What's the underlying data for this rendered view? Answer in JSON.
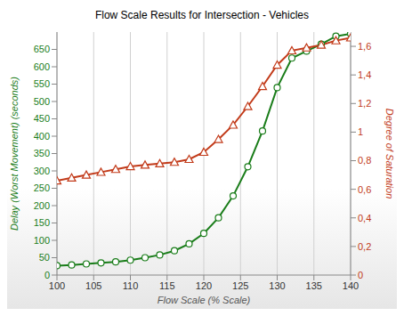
{
  "chart_data": {
    "type": "line",
    "title": "Flow Scale Results for Intersection - Vehicles",
    "xlabel": "Flow Scale (% Scale)",
    "ylabel": "Delay (Worst Movement) (seconds)",
    "y2label": "Degree of Saturation",
    "x": [
      100,
      102,
      104,
      106,
      108,
      110,
      112,
      114,
      116,
      118,
      120,
      122,
      124,
      126,
      128,
      130,
      132,
      134,
      136,
      138,
      140
    ],
    "series": [
      {
        "color": "#1a7d1a",
        "marker": "circle",
        "values": [
          27,
          29,
          32,
          35,
          38,
          43,
          50,
          58,
          70,
          90,
          120,
          165,
          228,
          312,
          415,
          540,
          625,
          645,
          665,
          688,
          695
        ]
      },
      {
        "color": "#c23b1a",
        "marker": "triangle",
        "axis": "y2",
        "values": [
          0.66,
          0.68,
          0.7,
          0.72,
          0.74,
          0.76,
          0.77,
          0.78,
          0.79,
          0.81,
          0.86,
          0.95,
          1.05,
          1.18,
          1.32,
          1.47,
          1.57,
          1.59,
          1.61,
          1.64,
          1.66
        ]
      }
    ],
    "xlim": [
      100,
      140
    ],
    "xticks": [
      100,
      105,
      110,
      115,
      120,
      125,
      130,
      135,
      140
    ],
    "ylim": [
      0,
      700
    ],
    "yticks": [
      0,
      50,
      100,
      150,
      200,
      250,
      300,
      350,
      400,
      450,
      500,
      550,
      600,
      650
    ],
    "y2lim": [
      0,
      1.7
    ],
    "y2ticks": [
      0,
      {
        "value": 0.2,
        "label": "0,2"
      },
      {
        "value": 0.4,
        "label": "0,4"
      },
      {
        "value": 0.6,
        "label": "0,6"
      },
      {
        "value": 0.8,
        "label": "0,8"
      },
      1,
      {
        "value": 1.2,
        "label": "1,2"
      },
      {
        "value": 1.4,
        "label": "1,4"
      },
      {
        "value": 1.6,
        "label": "1,6"
      }
    ],
    "grid": true
  }
}
